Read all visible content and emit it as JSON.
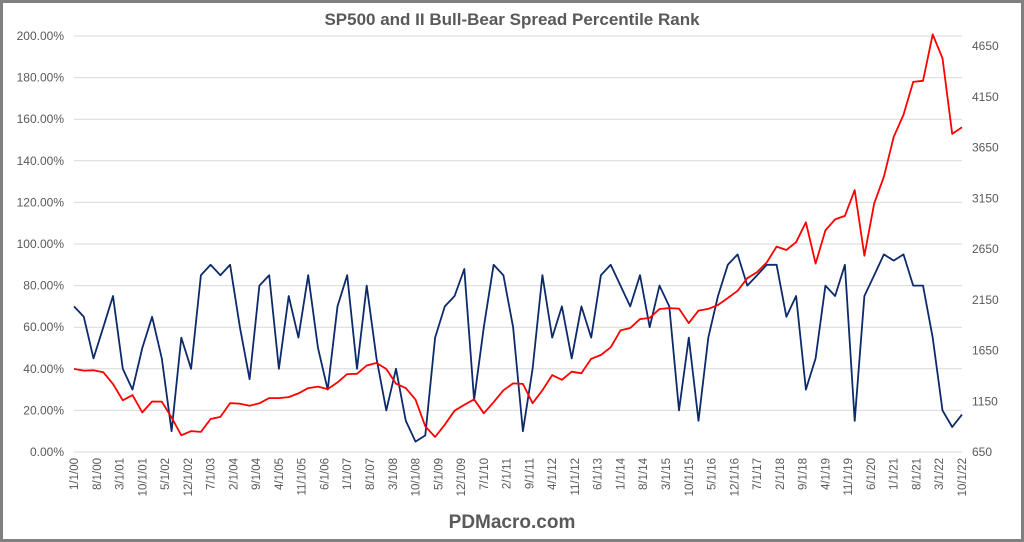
{
  "chart_data": {
    "type": "line",
    "title": "SP500 and II Bull-Bear Spread Percentile Rank",
    "footer": "PDMacro.com",
    "x_tick_labels": [
      "1/1/00",
      "8/1/00",
      "3/1/01",
      "10/1/01",
      "5/1/02",
      "12/1/02",
      "7/1/03",
      "2/1/04",
      "9/1/04",
      "4/1/05",
      "11/1/05",
      "6/1/06",
      "1/1/07",
      "8/1/07",
      "3/1/08",
      "10/1/08",
      "5/1/09",
      "12/1/09",
      "7/1/10",
      "2/1/11",
      "9/1/11",
      "4/1/12",
      "11/1/12",
      "6/1/13",
      "1/1/14",
      "8/1/14",
      "3/1/15",
      "10/1/15",
      "5/1/16",
      "12/1/16",
      "7/1/17",
      "2/1/18",
      "9/1/18",
      "4/1/19",
      "11/1/19",
      "6/1/20",
      "1/1/21",
      "8/1/21",
      "3/1/22",
      "10/1/22"
    ],
    "x_range": [
      "1/1/00",
      "10/1/22"
    ],
    "y_left": {
      "ticks": [
        "0.00%",
        "20.00%",
        "40.00%",
        "60.00%",
        "80.00%",
        "100.00%",
        "120.00%",
        "140.00%",
        "160.00%",
        "180.00%",
        "200.00%"
      ],
      "range": [
        0,
        200
      ]
    },
    "y_right": {
      "ticks": [
        "650",
        "1150",
        "1650",
        "2150",
        "2650",
        "3150",
        "3650",
        "4150",
        "4650"
      ],
      "range": [
        650,
        4750
      ]
    },
    "grid": true,
    "legend": "none",
    "x": [
      "2000-01",
      "2000-04",
      "2000-07",
      "2000-10",
      "2001-01",
      "2001-04",
      "2001-07",
      "2001-10",
      "2002-01",
      "2002-04",
      "2002-07",
      "2002-10",
      "2003-01",
      "2003-04",
      "2003-07",
      "2003-10",
      "2004-01",
      "2004-04",
      "2004-07",
      "2004-10",
      "2005-01",
      "2005-04",
      "2005-07",
      "2005-10",
      "2006-01",
      "2006-04",
      "2006-07",
      "2006-10",
      "2007-01",
      "2007-04",
      "2007-07",
      "2007-10",
      "2008-01",
      "2008-04",
      "2008-07",
      "2008-10",
      "2009-01",
      "2009-04",
      "2009-07",
      "2009-10",
      "2010-01",
      "2010-04",
      "2010-07",
      "2010-10",
      "2011-01",
      "2011-04",
      "2011-07",
      "2011-10",
      "2012-01",
      "2012-04",
      "2012-07",
      "2012-10",
      "2013-01",
      "2013-04",
      "2013-07",
      "2013-10",
      "2014-01",
      "2014-04",
      "2014-07",
      "2014-10",
      "2015-01",
      "2015-04",
      "2015-07",
      "2015-10",
      "2016-01",
      "2016-04",
      "2016-07",
      "2016-10",
      "2017-01",
      "2017-04",
      "2017-07",
      "2017-10",
      "2018-01",
      "2018-04",
      "2018-07",
      "2018-10",
      "2019-01",
      "2019-04",
      "2019-07",
      "2019-10",
      "2020-01",
      "2020-04",
      "2020-07",
      "2020-10",
      "2021-01",
      "2021-04",
      "2021-07",
      "2021-10",
      "2022-01",
      "2022-04",
      "2022-07",
      "2022-10"
    ],
    "series": [
      {
        "axis": "left",
        "color": "#0d2a6b",
        "unit": "percent",
        "values": [
          70,
          65,
          45,
          60,
          75,
          40,
          30,
          50,
          65,
          45,
          10,
          55,
          40,
          85,
          90,
          85,
          90,
          60,
          35,
          80,
          85,
          40,
          75,
          55,
          85,
          50,
          30,
          70,
          85,
          40,
          80,
          45,
          20,
          40,
          15,
          5,
          8,
          55,
          70,
          75,
          88,
          25,
          60,
          90,
          85,
          60,
          10,
          40,
          85,
          55,
          70,
          45,
          70,
          55,
          85,
          90,
          80,
          70,
          85,
          60,
          80,
          70,
          20,
          55,
          15,
          55,
          75,
          90,
          95,
          80,
          85,
          90,
          90,
          65,
          75,
          30,
          45,
          80,
          75,
          90,
          15,
          75,
          85,
          95,
          92,
          95,
          80,
          80,
          55,
          20,
          12,
          18
        ]
      },
      {
        "axis": "right",
        "color": "#ff0000",
        "unit": "index",
        "values": [
          1469,
          1452,
          1455,
          1436,
          1320,
          1160,
          1211,
          1040,
          1148,
          1147,
          990,
          815,
          856,
          848,
          975,
          996,
          1132,
          1126,
          1106,
          1130,
          1181,
          1181,
          1191,
          1228,
          1280,
          1295,
          1270,
          1336,
          1418,
          1421,
          1503,
          1527,
          1468,
          1323,
          1280,
          1166,
          903,
          798,
          919,
          1057,
          1115,
          1169,
          1031,
          1141,
          1258,
          1326,
          1321,
          1131,
          1258,
          1408,
          1362,
          1441,
          1426,
          1569,
          1606,
          1682,
          1848,
          1872,
          1960,
          1972,
          2059,
          2068,
          2063,
          1920,
          2044,
          2060,
          2099,
          2168,
          2239,
          2363,
          2423,
          2519,
          2674,
          2641,
          2718,
          2914,
          2507,
          2834,
          2942,
          2977,
          3231,
          2585,
          3100,
          3363,
          3756,
          3973,
          4298,
          4308,
          4766,
          4530,
          3785,
          3850
        ]
      }
    ]
  }
}
